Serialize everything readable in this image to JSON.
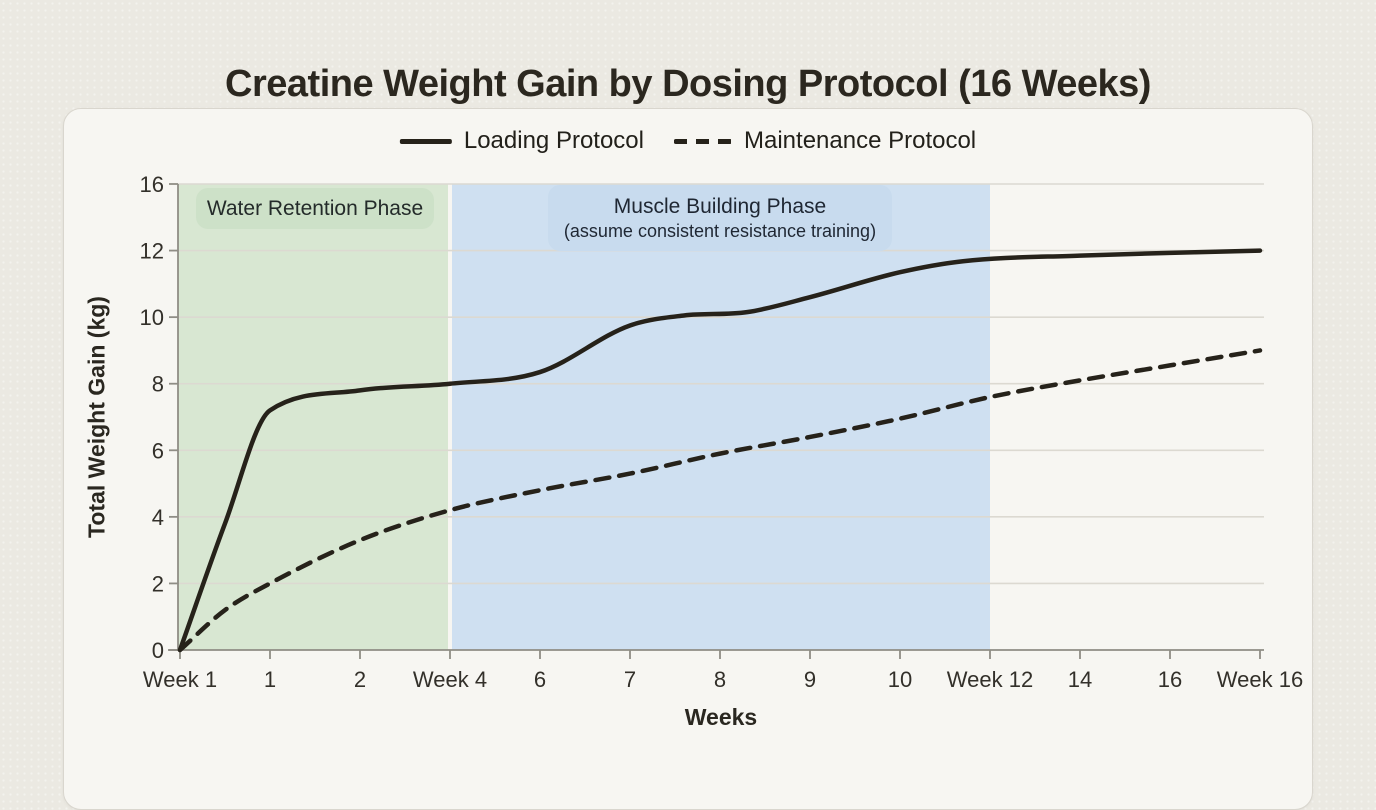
{
  "chart_data": {
    "type": "line",
    "title": "Creatine Weight Gain by Dosing Protocol (16 Weeks)",
    "xlabel": "Weeks",
    "ylabel": "Total Weight Gain (kg)",
    "x_tick_labels": [
      "Week 1",
      "1",
      "2",
      "Week 4",
      "6",
      "7",
      "8",
      "9",
      "10",
      "Week 12",
      "14",
      "16",
      "Week 16"
    ],
    "y_tick_labels": [
      "0",
      "2",
      "4",
      "6",
      "8",
      "10",
      "12",
      "16"
    ],
    "y_tick_values": [
      0,
      2,
      4,
      6,
      8,
      10,
      12,
      16
    ],
    "ylim_note": "y ticks evenly spaced; 14 omitted (12 to 16 drawn as one step)",
    "grid": "horizontal",
    "legend_position": "top-center",
    "series": [
      {
        "name": "Loading Protocol",
        "line_style": "solid",
        "color": "#26221a",
        "points": [
          [
            0,
            0
          ],
          [
            0.5,
            3.8
          ],
          [
            1,
            7.2
          ],
          [
            2,
            7.8
          ],
          [
            3,
            8.0
          ],
          [
            4,
            8.35
          ],
          [
            5,
            9.75
          ],
          [
            5.6,
            10.05
          ],
          [
            6.3,
            10.15
          ],
          [
            7,
            10.6
          ],
          [
            8,
            11.35
          ],
          [
            8.7,
            11.68
          ],
          [
            10,
            11.85
          ],
          [
            11,
            11.93
          ],
          [
            12,
            12.0
          ]
        ]
      },
      {
        "name": "Maintenance Protocol",
        "line_style": "dashed",
        "color": "#26221a",
        "points": [
          [
            0,
            0
          ],
          [
            0.5,
            1.2
          ],
          [
            1,
            2.0
          ],
          [
            2,
            3.3
          ],
          [
            3,
            4.2
          ],
          [
            4,
            4.8
          ],
          [
            5,
            5.3
          ],
          [
            6,
            5.9
          ],
          [
            7,
            6.4
          ],
          [
            8,
            6.95
          ],
          [
            9,
            7.6
          ],
          [
            10,
            8.1
          ],
          [
            11,
            8.55
          ],
          [
            12,
            9.0
          ]
        ]
      }
    ],
    "regions": [
      {
        "label": "Water Retention Phase",
        "sublabel": "",
        "from_tick": 0,
        "to_tick": 3,
        "fill": "#d8e7d2",
        "label_bg": "#cde1c8"
      },
      {
        "label": "Muscle Building Phase",
        "sublabel": "(assume consistent resistance training)",
        "from_tick": 3,
        "to_tick": 9,
        "fill": "#cfe0f1",
        "label_bg": "#c8dbee"
      }
    ]
  },
  "colors": {
    "page_bg": "#ebe9e2",
    "panel_bg": "#f7f6f2",
    "panel_border": "#d9d6ce",
    "grid": "#dcd9d1",
    "axis": "#8f8d85",
    "line": "#26221a",
    "tick_text": "#33302a"
  }
}
